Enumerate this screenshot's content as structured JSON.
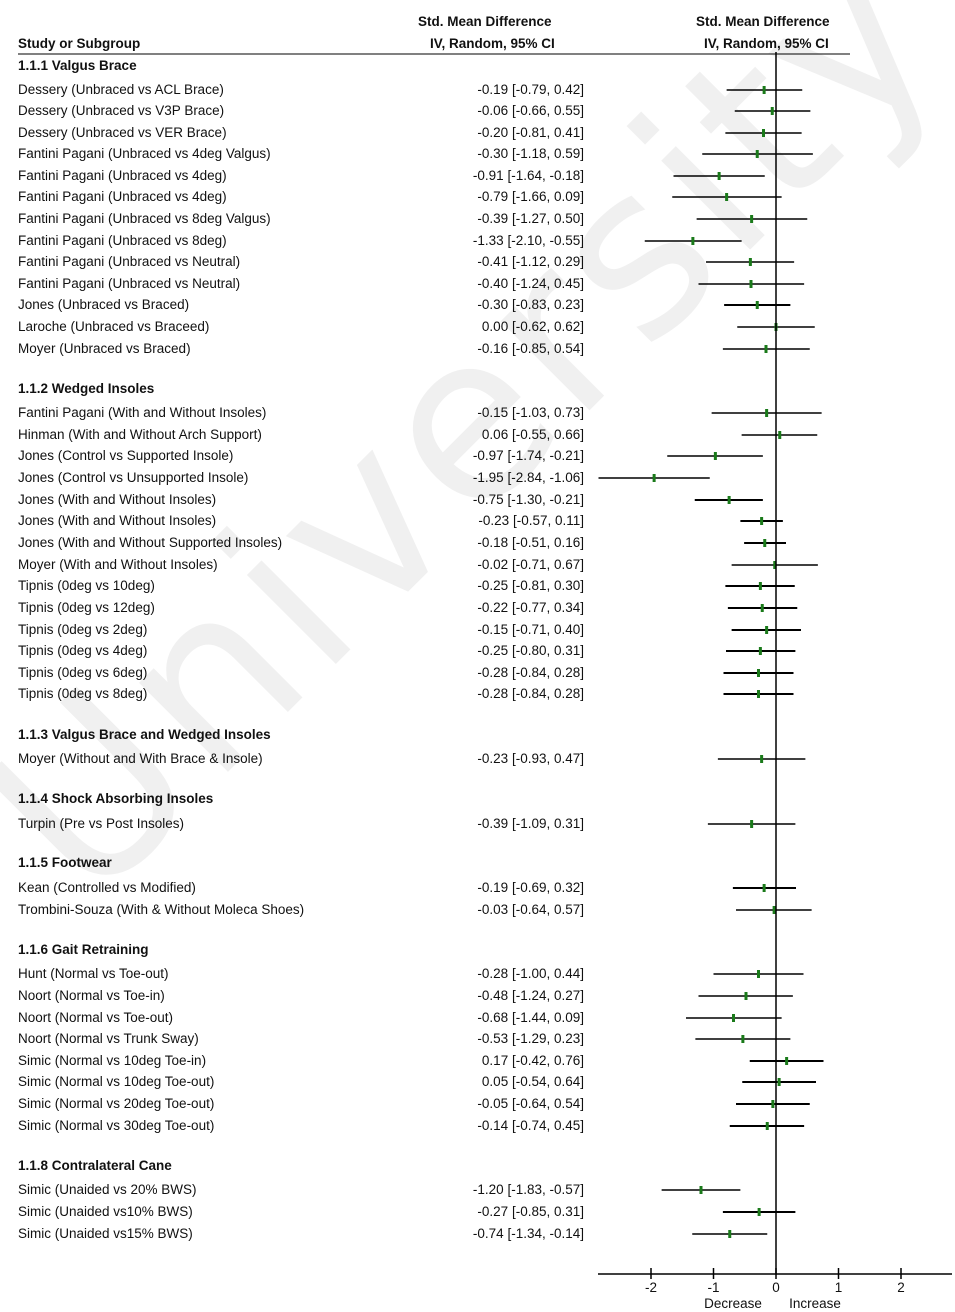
{
  "headers": {
    "study": "Study or Subgroup",
    "smd_title": "Std. Mean Difference",
    "smd_sub": "IV, Random, 95% CI",
    "plot_title": "Std. Mean Difference",
    "plot_sub": "IV, Random, 95% CI"
  },
  "watermark": "University of Malaya",
  "chart_data": {
    "type": "forest",
    "xlim": [
      -2.8,
      2.8
    ],
    "xticks": [
      "-2",
      "-1",
      "0",
      "1",
      "2"
    ],
    "xtick_values": [
      -2,
      -1,
      0,
      1,
      2
    ],
    "axis_left_label": "Decrease",
    "axis_right_label": "Increase",
    "rows": [
      {
        "type": "group",
        "label": "1.1.1 Valgus Brace"
      },
      {
        "type": "study",
        "label": "Dessery (Unbraced vs ACL Brace)",
        "est": -0.19,
        "lo": -0.79,
        "hi": 0.42,
        "ci": "-0.19 [-0.79, 0.42]"
      },
      {
        "type": "study",
        "label": "Dessery (Unbraced vs V3P Brace)",
        "est": -0.06,
        "lo": -0.66,
        "hi": 0.55,
        "ci": "-0.06 [-0.66, 0.55]"
      },
      {
        "type": "study",
        "label": "Dessery (Unbraced vs VER Brace)",
        "est": -0.2,
        "lo": -0.81,
        "hi": 0.41,
        "ci": "-0.20 [-0.81, 0.41]"
      },
      {
        "type": "study",
        "label": "Fantini Pagani (Unbraced vs 4deg Valgus)",
        "est": -0.3,
        "lo": -1.18,
        "hi": 0.59,
        "ci": "-0.30 [-1.18, 0.59]"
      },
      {
        "type": "study",
        "label": "Fantini Pagani (Unbraced vs 4deg)",
        "est": -0.91,
        "lo": -1.64,
        "hi": -0.18,
        "ci": "-0.91 [-1.64, -0.18]"
      },
      {
        "type": "study",
        "label": "Fantini Pagani (Unbraced vs 4deg)",
        "est": -0.79,
        "lo": -1.66,
        "hi": 0.09,
        "ci": "-0.79 [-1.66, 0.09]"
      },
      {
        "type": "study",
        "label": "Fantini Pagani (Unbraced vs 8deg Valgus)",
        "est": -0.39,
        "lo": -1.27,
        "hi": 0.5,
        "ci": "-0.39 [-1.27, 0.50]"
      },
      {
        "type": "study",
        "label": "Fantini Pagani (Unbraced vs 8deg)",
        "est": -1.33,
        "lo": -2.1,
        "hi": -0.55,
        "ci": "-1.33 [-2.10, -0.55]"
      },
      {
        "type": "study",
        "label": "Fantini Pagani (Unbraced vs Neutral)",
        "est": -0.41,
        "lo": -1.12,
        "hi": 0.29,
        "ci": "-0.41 [-1.12, 0.29]"
      },
      {
        "type": "study",
        "label": "Fantini Pagani (Unbraced vs Neutral)",
        "est": -0.4,
        "lo": -1.24,
        "hi": 0.45,
        "ci": "-0.40 [-1.24, 0.45]"
      },
      {
        "type": "study",
        "label": "Jones (Unbraced vs Braced)",
        "est": -0.3,
        "lo": -0.83,
        "hi": 0.23,
        "ci": "-0.30 [-0.83, 0.23]"
      },
      {
        "type": "study",
        "label": "Laroche (Unbraced vs Braceed)",
        "est": 0.0,
        "lo": -0.62,
        "hi": 0.62,
        "ci": "0.00 [-0.62, 0.62]"
      },
      {
        "type": "study",
        "label": "Moyer (Unbraced vs Braced)",
        "est": -0.16,
        "lo": -0.85,
        "hi": 0.54,
        "ci": "-0.16 [-0.85, 0.54]"
      },
      {
        "type": "group",
        "label": "1.1.2 Wedged Insoles"
      },
      {
        "type": "study",
        "label": "Fantini Pagani (With and Without Insoles)",
        "est": -0.15,
        "lo": -1.03,
        "hi": 0.73,
        "ci": "-0.15 [-1.03, 0.73]"
      },
      {
        "type": "study",
        "label": "Hinman (With and Without Arch Support)",
        "est": 0.06,
        "lo": -0.55,
        "hi": 0.66,
        "ci": "0.06 [-0.55, 0.66]"
      },
      {
        "type": "study",
        "label": "Jones (Control vs Supported Insole)",
        "est": -0.97,
        "lo": -1.74,
        "hi": -0.21,
        "ci": "-0.97 [-1.74, -0.21]"
      },
      {
        "type": "study",
        "label": "Jones (Control vs Unsupported Insole)",
        "est": -1.95,
        "lo": -2.84,
        "hi": -1.06,
        "ci": "-1.95 [-2.84, -1.06]"
      },
      {
        "type": "study",
        "label": "Jones (With and Without Insoles)",
        "est": -0.75,
        "lo": -1.3,
        "hi": -0.21,
        "ci": "-0.75 [-1.30, -0.21]"
      },
      {
        "type": "study",
        "label": "Jones (With and Without Insoles)",
        "est": -0.23,
        "lo": -0.57,
        "hi": 0.11,
        "ci": "-0.23 [-0.57, 0.11]"
      },
      {
        "type": "study",
        "label": "Jones (With and Without Supported Insoles)",
        "est": -0.18,
        "lo": -0.51,
        "hi": 0.16,
        "ci": "-0.18 [-0.51, 0.16]"
      },
      {
        "type": "study",
        "label": "Moyer (With and Without Insoles)",
        "est": -0.02,
        "lo": -0.71,
        "hi": 0.67,
        "ci": "-0.02 [-0.71, 0.67]"
      },
      {
        "type": "study",
        "label": "Tipnis (0deg vs 10deg)",
        "est": -0.25,
        "lo": -0.81,
        "hi": 0.3,
        "ci": "-0.25 [-0.81, 0.30]"
      },
      {
        "type": "study",
        "label": "Tipnis (0deg vs 12deg)",
        "est": -0.22,
        "lo": -0.77,
        "hi": 0.34,
        "ci": "-0.22 [-0.77, 0.34]"
      },
      {
        "type": "study",
        "label": "Tipnis (0deg vs 2deg)",
        "est": -0.15,
        "lo": -0.71,
        "hi": 0.4,
        "ci": "-0.15 [-0.71, 0.40]"
      },
      {
        "type": "study",
        "label": "Tipnis (0deg vs 4deg)",
        "est": -0.25,
        "lo": -0.8,
        "hi": 0.31,
        "ci": "-0.25 [-0.80, 0.31]"
      },
      {
        "type": "study",
        "label": "Tipnis (0deg vs 6deg)",
        "est": -0.28,
        "lo": -0.84,
        "hi": 0.28,
        "ci": "-0.28 [-0.84, 0.28]"
      },
      {
        "type": "study",
        "label": "Tipnis (0deg vs 8deg)",
        "est": -0.28,
        "lo": -0.84,
        "hi": 0.28,
        "ci": "-0.28 [-0.84, 0.28]"
      },
      {
        "type": "group",
        "label": "1.1.3 Valgus Brace and Wedged Insoles"
      },
      {
        "type": "study",
        "label": "Moyer (Without and With Brace & Insole)",
        "est": -0.23,
        "lo": -0.93,
        "hi": 0.47,
        "ci": "-0.23 [-0.93, 0.47]"
      },
      {
        "type": "group",
        "label": "1.1.4 Shock Absorbing Insoles"
      },
      {
        "type": "study",
        "label": "Turpin (Pre vs Post Insoles)",
        "est": -0.39,
        "lo": -1.09,
        "hi": 0.31,
        "ci": "-0.39 [-1.09, 0.31]"
      },
      {
        "type": "group",
        "label": "1.1.5 Footwear"
      },
      {
        "type": "study",
        "label": "Kean (Controlled vs Modified)",
        "est": -0.19,
        "lo": -0.69,
        "hi": 0.32,
        "ci": "-0.19 [-0.69, 0.32]"
      },
      {
        "type": "study",
        "label": "Trombini-Souza (With & Without Moleca Shoes)",
        "est": -0.03,
        "lo": -0.64,
        "hi": 0.57,
        "ci": "-0.03 [-0.64, 0.57]"
      },
      {
        "type": "group",
        "label": "1.1.6 Gait Retraining"
      },
      {
        "type": "study",
        "label": "Hunt (Normal vs Toe-out)",
        "est": -0.28,
        "lo": -1.0,
        "hi": 0.44,
        "ci": "-0.28 [-1.00, 0.44]"
      },
      {
        "type": "study",
        "label": "Noort (Normal vs Toe-in)",
        "est": -0.48,
        "lo": -1.24,
        "hi": 0.27,
        "ci": "-0.48 [-1.24, 0.27]"
      },
      {
        "type": "study",
        "label": "Noort (Normal vs Toe-out)",
        "est": -0.68,
        "lo": -1.44,
        "hi": 0.09,
        "ci": "-0.68 [-1.44, 0.09]"
      },
      {
        "type": "study",
        "label": "Noort (Normal vs Trunk Sway)",
        "est": -0.53,
        "lo": -1.29,
        "hi": 0.23,
        "ci": "-0.53 [-1.29, 0.23]"
      },
      {
        "type": "study",
        "label": "Simic (Normal vs 10deg Toe-in)",
        "est": 0.17,
        "lo": -0.42,
        "hi": 0.76,
        "ci": "0.17 [-0.42, 0.76]"
      },
      {
        "type": "study",
        "label": "Simic (Normal vs 10deg Toe-out)",
        "est": 0.05,
        "lo": -0.54,
        "hi": 0.64,
        "ci": "0.05 [-0.54, 0.64]"
      },
      {
        "type": "study",
        "label": "Simic (Normal vs 20deg Toe-out)",
        "est": -0.05,
        "lo": -0.64,
        "hi": 0.54,
        "ci": "-0.05 [-0.64, 0.54]"
      },
      {
        "type": "study",
        "label": "Simic (Normal vs 30deg Toe-out)",
        "est": -0.14,
        "lo": -0.74,
        "hi": 0.45,
        "ci": "-0.14 [-0.74, 0.45]"
      },
      {
        "type": "group",
        "label": "1.1.8 Contralateral Cane"
      },
      {
        "type": "study",
        "label": "Simic (Unaided vs 20% BWS)",
        "est": -1.2,
        "lo": -1.83,
        "hi": -0.57,
        "ci": "-1.20 [-1.83, -0.57]"
      },
      {
        "type": "study",
        "label": "Simic (Unaided vs10% BWS)",
        "est": -0.27,
        "lo": -0.85,
        "hi": 0.31,
        "ci": "-0.27 [-0.85, 0.31]"
      },
      {
        "type": "study",
        "label": "Simic (Unaided vs15% BWS)",
        "est": -0.74,
        "lo": -1.34,
        "hi": -0.14,
        "ci": "-0.74 [-1.34, -0.14]"
      }
    ],
    "marker_color": "#1a7a1a",
    "line_color": "#000000"
  }
}
